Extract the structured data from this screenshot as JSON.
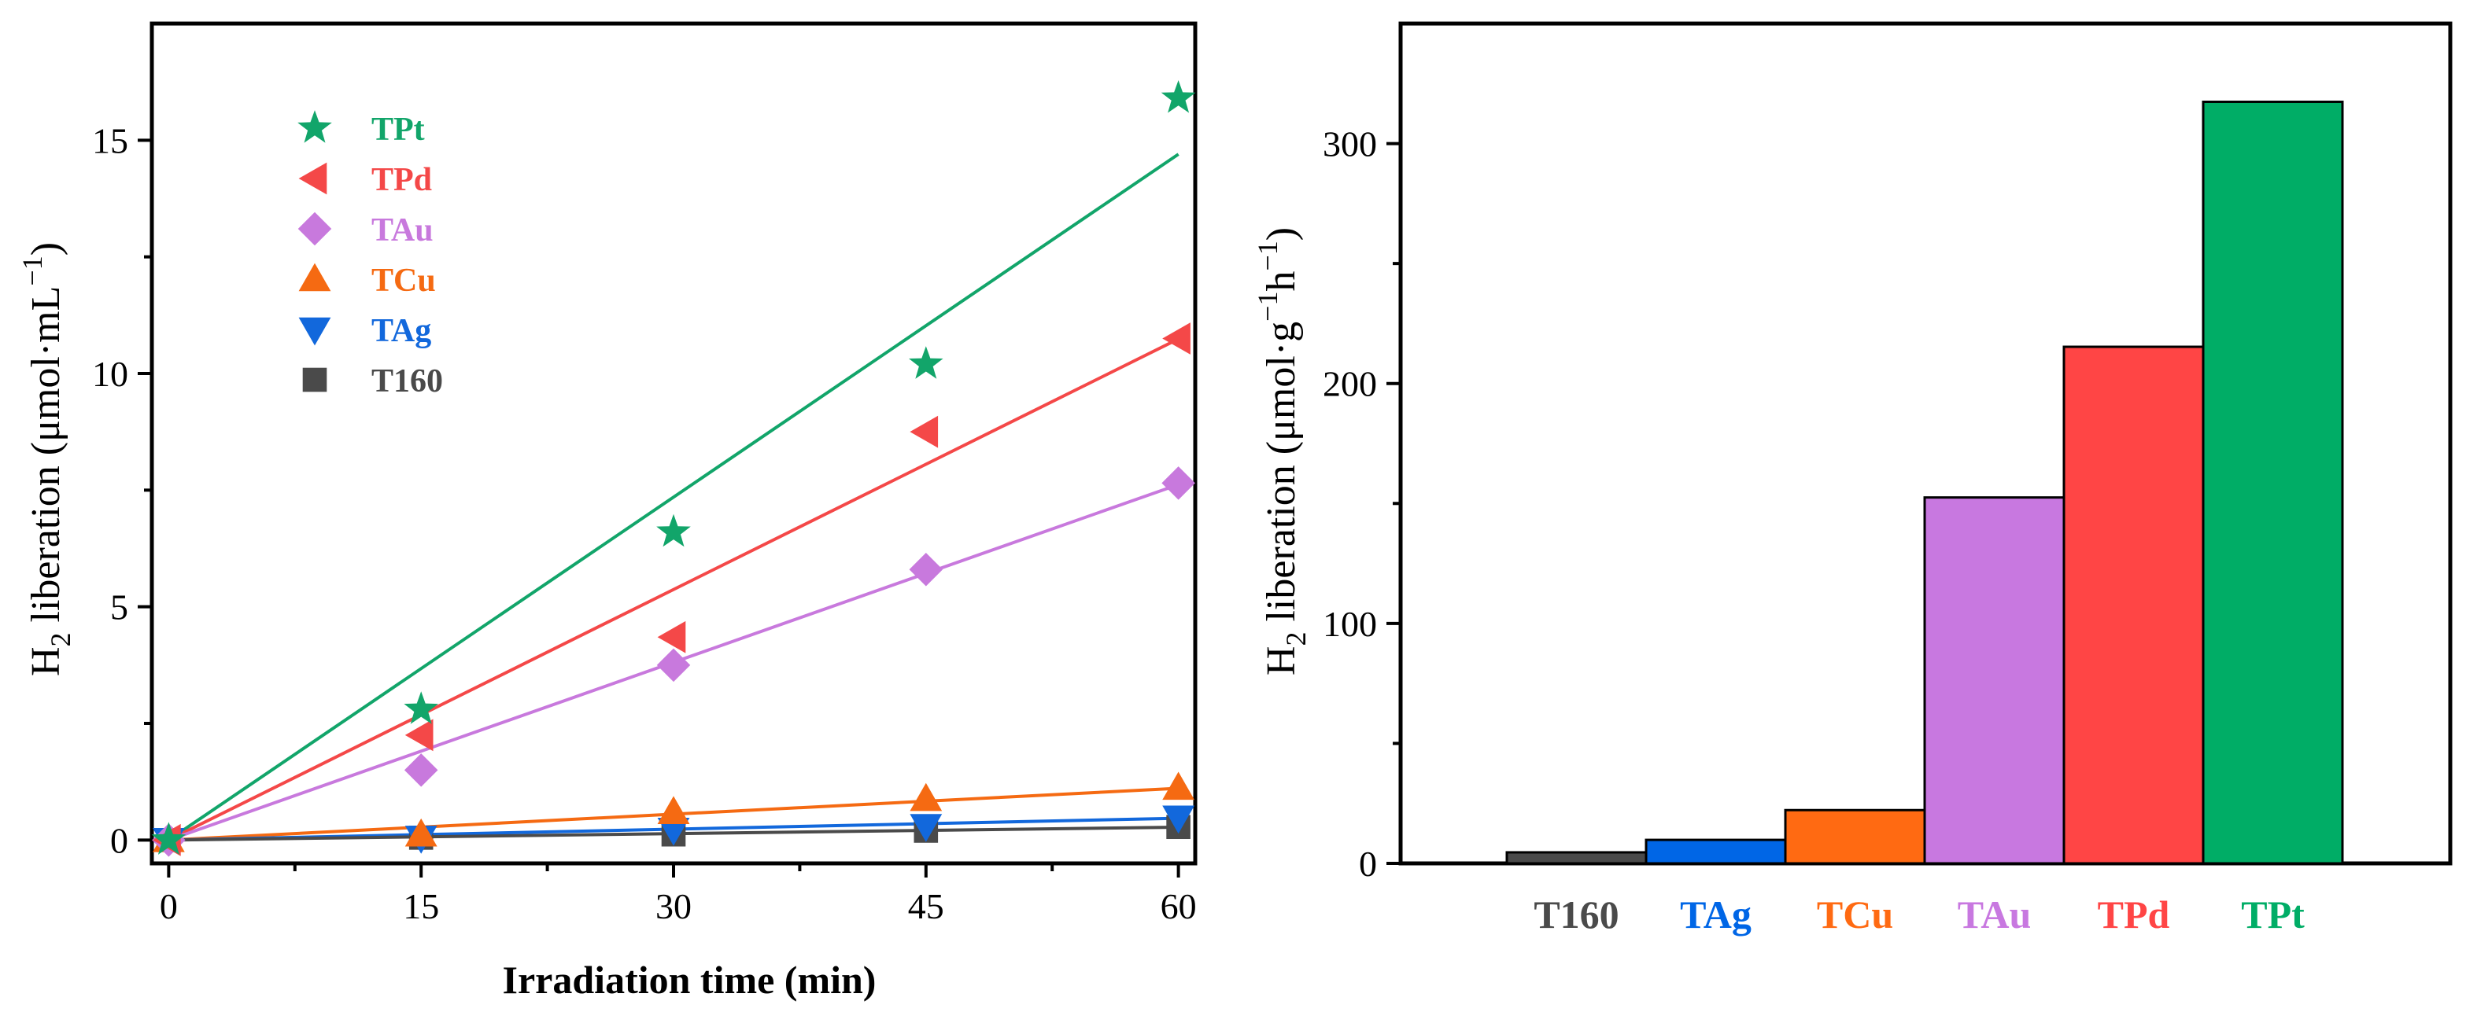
{
  "colors": {
    "TPt": "#12a56a",
    "TPd": "#f44848",
    "TAu": "#c879dd",
    "TCu": "#f56a12",
    "TAg": "#1268dc",
    "T160": "#4a4a4a",
    "bar_TPt": "#00ad66",
    "bar_TPd": "#ff4545",
    "bar_TAu": "#c878e0",
    "bar_TCu": "#ff6a12",
    "bar_TAg": "#0066e6",
    "bar_T160": "#4a4a4a"
  },
  "chart_data": [
    {
      "type": "scatter",
      "title": "",
      "xlabel": "Irradiation time (min)",
      "ylabel_main": "H",
      "ylabel_sub": "2",
      "ylabel_rest": " liberation (μmol·mL",
      "ylabel_sup": "−1",
      "ylabel_end": ")",
      "xlim": [
        -1,
        61
      ],
      "ylim": [
        -0.5,
        17.5
      ],
      "xticks": [
        0,
        15,
        30,
        45,
        60
      ],
      "xtick_labels": [
        "0",
        "15",
        "30",
        "45",
        "60"
      ],
      "yticks": [
        0,
        5,
        10,
        15
      ],
      "ytick_labels": [
        "0",
        "5",
        "10",
        "15"
      ],
      "legend_position": "top-left",
      "series": [
        {
          "name": "TPt",
          "marker": "star",
          "x": [
            0,
            15,
            30,
            45,
            60
          ],
          "y": [
            0,
            2.8,
            6.6,
            10.2,
            15.9
          ],
          "fit_slope": 0.245
        },
        {
          "name": "TPd",
          "marker": "triangle-left",
          "x": [
            0,
            15,
            30,
            45,
            60
          ],
          "y": [
            0,
            2.25,
            4.35,
            8.75,
            10.75
          ],
          "fit_slope": 0.179
        },
        {
          "name": "TAu",
          "marker": "diamond",
          "x": [
            0,
            15,
            30,
            45,
            60
          ],
          "y": [
            0,
            1.5,
            3.75,
            5.8,
            7.65
          ],
          "fit_slope": 0.127
        },
        {
          "name": "TCu",
          "marker": "triangle-up",
          "x": [
            0,
            15,
            30,
            45,
            60
          ],
          "y": [
            0,
            0.12,
            0.6,
            0.88,
            1.12
          ],
          "fit_slope": 0.0185
        },
        {
          "name": "TAg",
          "marker": "triangle-down",
          "x": [
            0,
            15,
            30,
            45,
            60
          ],
          "y": [
            0,
            0.05,
            0.22,
            0.3,
            0.48
          ],
          "fit_slope": 0.0078
        },
        {
          "name": "T160",
          "marker": "square",
          "x": [
            0,
            15,
            30,
            45,
            60
          ],
          "y": [
            0,
            0.05,
            0.12,
            0.2,
            0.28
          ],
          "fit_slope": 0.0046
        }
      ]
    },
    {
      "type": "bar",
      "title": "",
      "xlabel": "",
      "ylabel_main": "H",
      "ylabel_sub": "2",
      "ylabel_rest": " liberation (μmol·g",
      "ylabel_sup1": "−1",
      "ylabel_mid": "h",
      "ylabel_sup2": "−1",
      "ylabel_end": ")",
      "ylim": [
        0,
        350
      ],
      "yticks": [
        0,
        100,
        200,
        300
      ],
      "ytick_labels": [
        "0",
        "100",
        "200",
        "300"
      ],
      "categories": [
        "T160",
        "TAg",
        "TCu",
        "TAu",
        "TPd",
        "TPt"
      ],
      "values": [
        4.6,
        9.8,
        22.2,
        152.5,
        215.3,
        317.4
      ]
    }
  ]
}
